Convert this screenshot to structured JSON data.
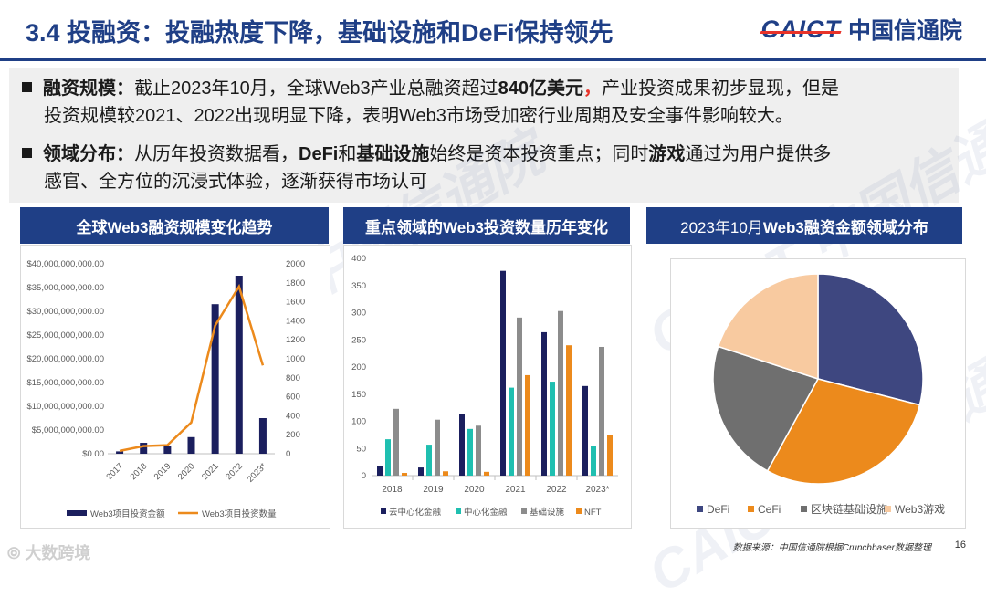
{
  "header": {
    "title": "3.4 投融资：投融热度下降，基础设施和DeFi保持领先",
    "logo_mark": "CAICT",
    "logo_text": "中国信通院"
  },
  "bullets": [
    {
      "label": "融资规模：",
      "text_a": "截止2023年10月，全球Web3产业总融资超过",
      "highlight": "840亿美元",
      "comma": "，",
      "text_b": "产业投资成果初步显现，但是",
      "line2": "投资规模较2021、2022出现明显下降，表明Web3市场受加密行业周期及安全事件影响较大。"
    },
    {
      "label": "领域分布：",
      "text_a": "从历年投资数据看，",
      "b1": "DeFi",
      "t1": "和",
      "b2": "基础设施",
      "t2": "始终是资本投资重点；同时",
      "b3": "游戏",
      "t3": "通过为用户提供多",
      "line2": "感官、全方位的沉浸式体验，逐渐获得市场认可"
    }
  ],
  "charts": [
    {
      "panel_title": "全球Web3融资规模变化趋势",
      "chart_data": {
        "type": "bar+line",
        "categories": [
          "2017",
          "2018",
          "2019",
          "2020",
          "2021",
          "2022",
          "2023*"
        ],
        "series": [
          {
            "name": "Web3项目投资金额",
            "type": "bar",
            "axis": "left",
            "color": "#1b1f5e",
            "values": [
              500000000,
              2300000000,
              1600000000,
              3500000000,
              31500000000,
              37500000000,
              7500000000
            ]
          },
          {
            "name": "Web3项目投资数量",
            "type": "line",
            "axis": "right",
            "color": "#ec8a1c",
            "values": [
              30,
              80,
              90,
              330,
              1350,
              1760,
              930
            ]
          }
        ],
        "yleft_ticks": [
          "$0.00",
          "$5,000,000,000.00",
          "$10,000,000,000.00",
          "$15,000,000,000.00",
          "$20,000,000,000.00",
          "$25,000,000,000.00",
          "$30,000,000,000.00",
          "$35,000,000,000.00",
          "$40,000,000,000.00"
        ],
        "yleft_lim": [
          0,
          40000000000
        ],
        "yright_ticks": [
          "0",
          "200",
          "400",
          "600",
          "800",
          "1000",
          "1200",
          "1400",
          "1600",
          "1800",
          "2000"
        ],
        "yright_lim": [
          0,
          2000
        ],
        "legend": "bottom"
      }
    },
    {
      "panel_title": "重点领域的Web3投资数量历年变化",
      "chart_data": {
        "type": "bar",
        "categories": [
          "2018",
          "2019",
          "2020",
          "2021",
          "2022",
          "2023*"
        ],
        "series": [
          {
            "name": "去中心化金融",
            "color": "#1b1f5e",
            "values": [
              18,
              15,
              113,
              377,
              264,
              165
            ]
          },
          {
            "name": "中心化金融",
            "color": "#1fbfb0",
            "values": [
              67,
              57,
              86,
              162,
              173,
              54
            ]
          },
          {
            "name": "基础设施",
            "color": "#8c8c8c",
            "values": [
              123,
              103,
              92,
              291,
              303,
              237
            ]
          },
          {
            "name": "NFT",
            "color": "#ec8a1c",
            "values": [
              5,
              8,
              7,
              185,
              240,
              74
            ]
          }
        ],
        "y_ticks": [
          "0",
          "50",
          "100",
          "150",
          "200",
          "250",
          "300",
          "350",
          "400"
        ],
        "ylim": [
          0,
          400
        ],
        "legend": "bottom"
      }
    },
    {
      "panel_title": "2023年10月",
      "panel_title_bold": "Web3融资金额领域分布",
      "chart_data": {
        "type": "pie",
        "series": [
          {
            "name": "DeFi",
            "color": "#3e4780",
            "value": 29
          },
          {
            "name": "CeFi",
            "color": "#ec8a1c",
            "value": 29
          },
          {
            "name": "区块链基础设施",
            "color": "#6f6f6f",
            "value": 22
          },
          {
            "name": "Web3游戏",
            "color": "#f8caa0",
            "value": 20
          }
        ],
        "legend": "bottom"
      }
    }
  ],
  "footer": {
    "source": "数据来源：中国信通院根据Crunchbaser数据整理",
    "page": "16",
    "watermark": "大数跨境"
  }
}
